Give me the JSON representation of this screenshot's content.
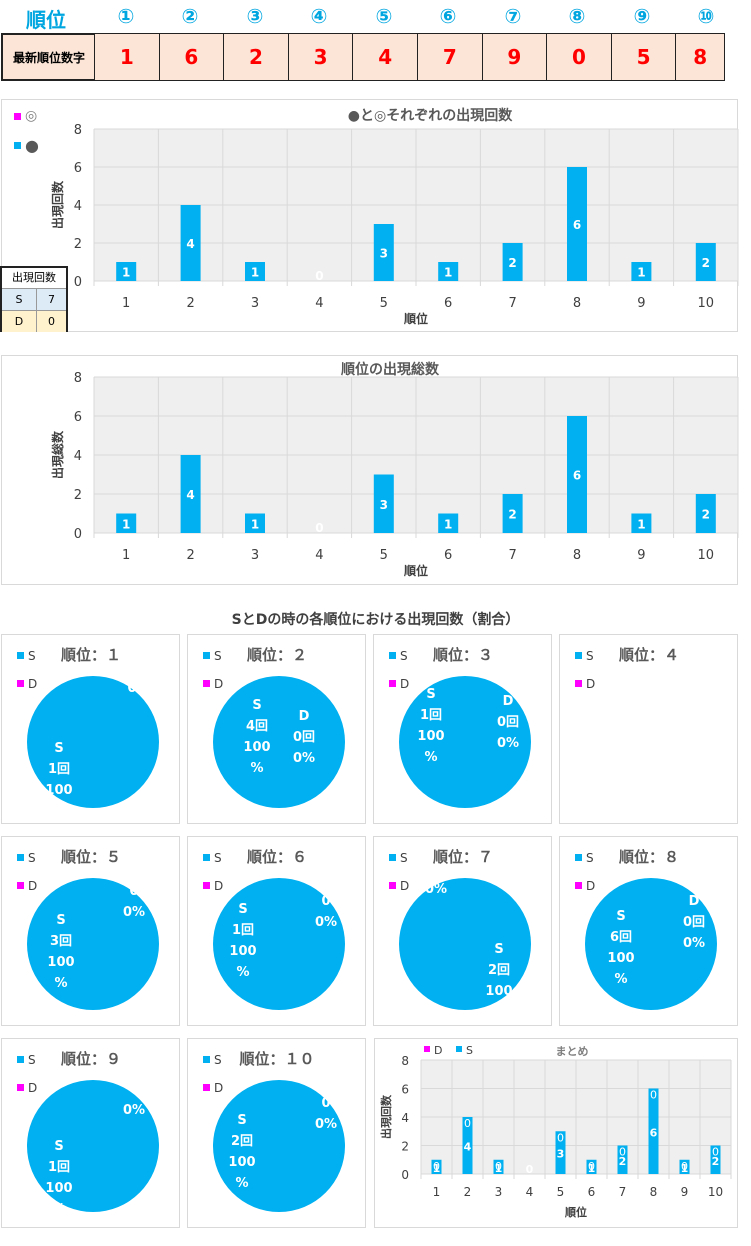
{
  "header": {
    "rank_label": "順位",
    "rank_circles": [
      "①",
      "②",
      "③",
      "④",
      "⑤",
      "⑥",
      "⑦",
      "⑧",
      "⑨",
      "⑩"
    ],
    "latest_label": "最新順位数字",
    "latest_digits": [
      "1",
      "6",
      "2",
      "3",
      "4",
      "7",
      "9",
      "0",
      "5",
      "8"
    ]
  },
  "side_table": {
    "title": "出現回数",
    "rows": [
      {
        "label": "S",
        "value": "7"
      },
      {
        "label": "D",
        "value": "0"
      }
    ]
  },
  "legend": {
    "circle_double": "◎",
    "circle_filled": "●",
    "S": "S",
    "D": "D"
  },
  "colors": {
    "blue": "#00B0F0",
    "magenta": "#FF00FF",
    "header_blue": "#00A6E0",
    "digit_red": "#FF0000",
    "cell_bg": "#FCE4D6",
    "plot_bg": "#EFEFEF"
  },
  "section_title": "SとDの時の各順位における出現回数（割合）",
  "chart_data": [
    {
      "type": "bar",
      "title": "●と◎それぞれの出現回数",
      "ylabel": "出現回数",
      "xlabel": "順位",
      "categories": [
        "1",
        "2",
        "3",
        "4",
        "5",
        "6",
        "7",
        "8",
        "9",
        "10"
      ],
      "values": [
        1,
        4,
        1,
        0,
        3,
        1,
        2,
        6,
        1,
        2
      ],
      "ylim": [
        0,
        8
      ],
      "yticks": [
        "0",
        "2",
        "4",
        "6",
        "8"
      ],
      "legend": [
        "◎",
        "●"
      ]
    },
    {
      "type": "bar",
      "title": "順位の出現総数",
      "ylabel": "出現総数",
      "xlabel": "順位",
      "categories": [
        "1",
        "2",
        "3",
        "4",
        "5",
        "6",
        "7",
        "8",
        "9",
        "10"
      ],
      "values": [
        1,
        4,
        1,
        0,
        3,
        1,
        2,
        6,
        1,
        2
      ],
      "ylim": [
        0,
        8
      ],
      "yticks": [
        "0",
        "2",
        "4",
        "6",
        "8"
      ]
    },
    {
      "type": "pie",
      "panels": [
        {
          "title": "順位：１",
          "S": 1,
          "D": 0,
          "s_lines": [
            "S",
            "1回",
            "100"
          ],
          "d_lines": [
            "0"
          ]
        },
        {
          "title": "順位：２",
          "S": 4,
          "D": 0,
          "s_lines": [
            "S",
            "4回",
            "100",
            "%"
          ],
          "d_lines": [
            "D",
            "0回",
            "0%"
          ]
        },
        {
          "title": "順位：３",
          "S": 1,
          "D": 0,
          "s_lines": [
            "S",
            "1回",
            "100",
            "%"
          ],
          "d_lines": [
            "D",
            "0回",
            "0%"
          ]
        },
        {
          "title": "順位：４",
          "S": 0,
          "D": 0,
          "s_lines": [],
          "d_lines": []
        },
        {
          "title": "順位：５",
          "S": 3,
          "D": 0,
          "s_lines": [
            "S",
            "3回",
            "100",
            "%"
          ],
          "d_lines": [
            "0",
            "0%"
          ]
        },
        {
          "title": "順位：６",
          "S": 1,
          "D": 0,
          "s_lines": [
            "S",
            "1回",
            "100",
            "%"
          ],
          "d_lines": [
            "0",
            "0%"
          ]
        },
        {
          "title": "順位：７",
          "S": 2,
          "D": 0,
          "s_lines": [
            "S",
            "2回",
            "100"
          ],
          "d_lines": [
            "0%"
          ]
        },
        {
          "title": "順位：８",
          "S": 6,
          "D": 0,
          "s_lines": [
            "S",
            "6回",
            "100",
            "%"
          ],
          "d_lines": [
            "D",
            "0回",
            "0%"
          ]
        },
        {
          "title": "順位：９",
          "S": 1,
          "D": 0,
          "s_lines": [
            "S",
            "1回",
            "100",
            "%"
          ],
          "d_lines": [
            "0",
            "0%"
          ]
        },
        {
          "title": "順位：１０",
          "S": 2,
          "D": 0,
          "s_lines": [
            "S",
            "2回",
            "100",
            "%"
          ],
          "d_lines": [
            "0",
            "0%"
          ]
        }
      ]
    },
    {
      "type": "bar",
      "title": "まとめ",
      "ylabel": "出現回数",
      "xlabel": "順位",
      "categories": [
        "1",
        "2",
        "3",
        "4",
        "5",
        "6",
        "7",
        "8",
        "9",
        "10"
      ],
      "series": [
        {
          "name": "D",
          "values": [
            0,
            0,
            0,
            0,
            0,
            0,
            0,
            0,
            0,
            0
          ]
        },
        {
          "name": "S",
          "values": [
            1,
            4,
            1,
            0,
            3,
            1,
            2,
            6,
            1,
            2
          ]
        }
      ],
      "ylim": [
        0,
        8
      ],
      "yticks": [
        "0",
        "2",
        "4",
        "6",
        "8"
      ]
    }
  ]
}
